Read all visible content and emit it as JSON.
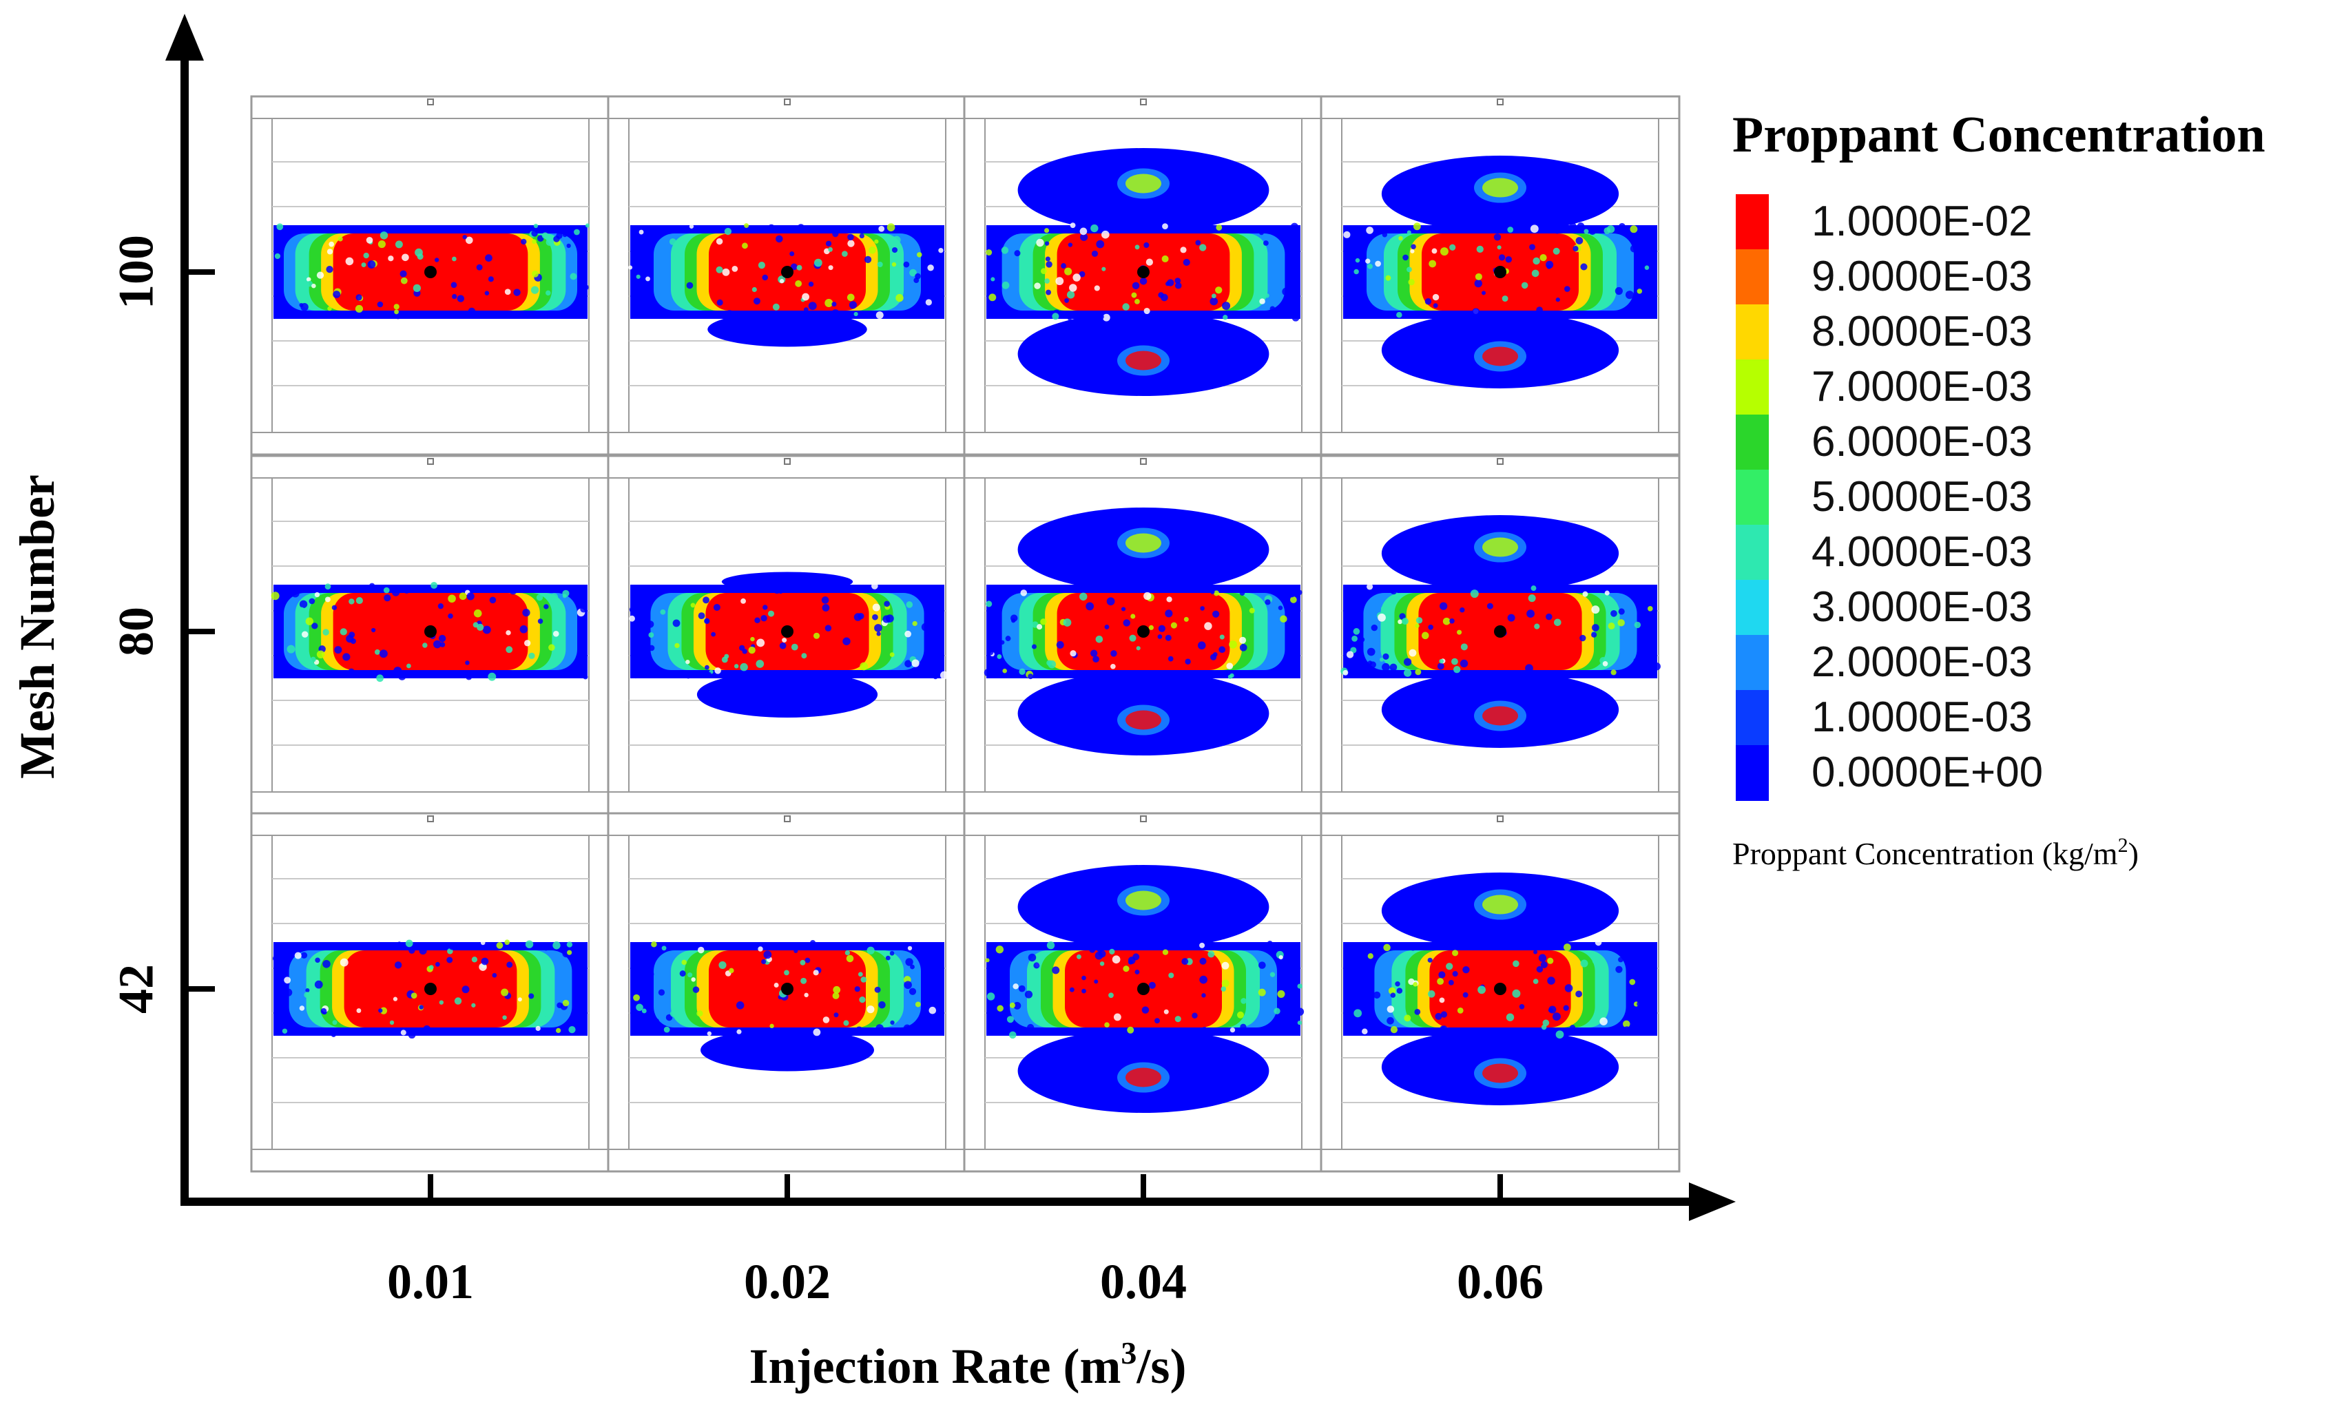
{
  "chart_data": {
    "type": "heatmap",
    "title": "",
    "xlabel_prefix": "Injection Rate (m",
    "xlabel_sup": "3",
    "xlabel_suffix": "/s)",
    "ylabel": "Mesh Number",
    "x_categories": [
      "0.01",
      "0.02",
      "0.04",
      "0.06"
    ],
    "y_categories": [
      "100",
      "80",
      "42"
    ],
    "cells": [
      {
        "mesh": "100",
        "rate": "0.01",
        "upper_spread": 0.0,
        "lower_spread": 0.0,
        "core_fraction": 0.62
      },
      {
        "mesh": "100",
        "rate": "0.02",
        "upper_spread": 0.0,
        "lower_spread": 0.35,
        "core_fraction": 0.5
      },
      {
        "mesh": "100",
        "rate": "0.04",
        "upper_spread": 1.0,
        "lower_spread": 1.0,
        "core_fraction": 0.55
      },
      {
        "mesh": "100",
        "rate": "0.06",
        "upper_spread": 0.9,
        "lower_spread": 0.9,
        "core_fraction": 0.5
      },
      {
        "mesh": "80",
        "rate": "0.01",
        "upper_spread": 0.0,
        "lower_spread": 0.0,
        "core_fraction": 0.62
      },
      {
        "mesh": "80",
        "rate": "0.02",
        "upper_spread": 0.15,
        "lower_spread": 0.5,
        "core_fraction": 0.52
      },
      {
        "mesh": "80",
        "rate": "0.04",
        "upper_spread": 1.0,
        "lower_spread": 1.0,
        "core_fraction": 0.55
      },
      {
        "mesh": "80",
        "rate": "0.06",
        "upper_spread": 0.9,
        "lower_spread": 0.9,
        "core_fraction": 0.52
      },
      {
        "mesh": "42",
        "rate": "0.01",
        "upper_spread": 0.0,
        "lower_spread": 0.0,
        "core_fraction": 0.55
      },
      {
        "mesh": "42",
        "rate": "0.02",
        "upper_spread": 0.0,
        "lower_spread": 0.45,
        "core_fraction": 0.5
      },
      {
        "mesh": "42",
        "rate": "0.04",
        "upper_spread": 1.0,
        "lower_spread": 1.0,
        "core_fraction": 0.5
      },
      {
        "mesh": "42",
        "rate": "0.06",
        "upper_spread": 0.9,
        "lower_spread": 0.9,
        "core_fraction": 0.45
      }
    ],
    "legend": {
      "title": "Proppant Concentration",
      "entries": [
        {
          "label": "1.0000E-02",
          "color": "#ff0000"
        },
        {
          "label": "9.0000E-03",
          "color": "#ff6a00"
        },
        {
          "label": "8.0000E-03",
          "color": "#ffd800"
        },
        {
          "label": "7.0000E-03",
          "color": "#b6ff00"
        },
        {
          "label": "6.0000E-03",
          "color": "#2bd62b"
        },
        {
          "label": "5.0000E-03",
          "color": "#33ee66"
        },
        {
          "label": "4.0000E-03",
          "color": "#2ee8b0"
        },
        {
          "label": "3.0000E-03",
          "color": "#1fd8f0"
        },
        {
          "label": "2.0000E-03",
          "color": "#1a8cff"
        },
        {
          "label": "1.0000E-03",
          "color": "#0a3cff"
        },
        {
          "label": "0.0000E+00",
          "color": "#0000ff"
        }
      ],
      "caption_prefix": "Proppant Concentration (kg/m",
      "caption_sup": "2",
      "caption_suffix": ")"
    }
  }
}
